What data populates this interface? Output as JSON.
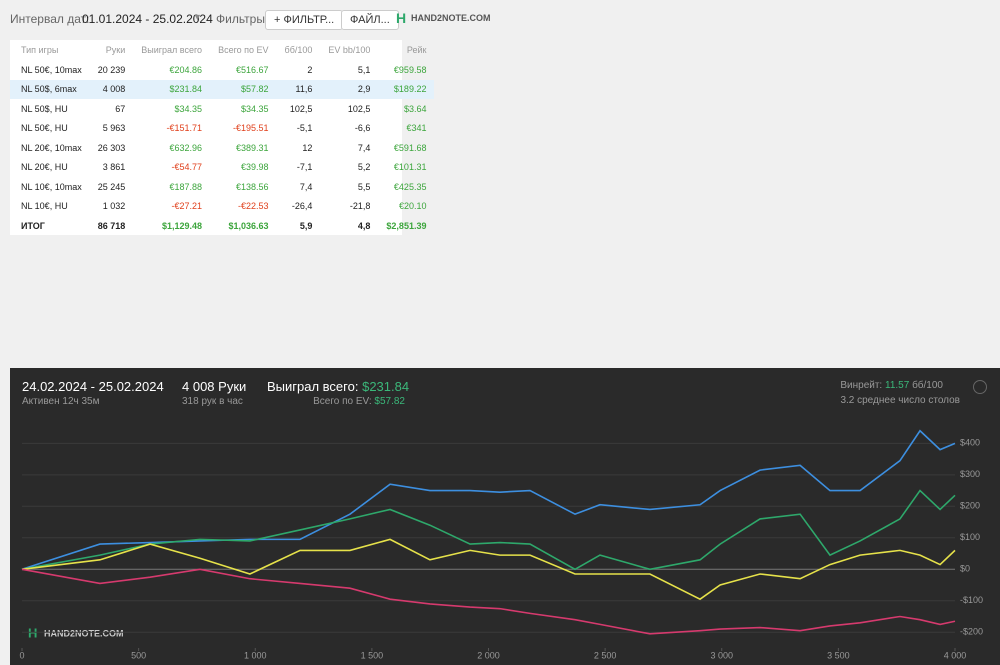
{
  "toolbar": {
    "date_label": "Интервал дат:",
    "date_range": "01.01.2024 - 25.02.2024",
    "filters_label": "Фильтры:",
    "filter_button": "ФИЛЬТР...",
    "file_button": "ФАЙЛ...",
    "logo": "HAND2NOTE.COM"
  },
  "table": {
    "columns": [
      "Тип игры",
      "Руки",
      "Выиграл всего",
      "Всего по EV",
      "бб/100",
      "EV bb/100",
      "Рейк"
    ],
    "rows": [
      [
        "NL 50€, 10max",
        "20 239",
        "€204.86",
        "€516.67",
        "2",
        "5,1",
        "€959.58"
      ],
      [
        "NL 50$, 6max",
        "4 008",
        "$231.84",
        "$57.82",
        "11,6",
        "2,9",
        "$189.22"
      ],
      [
        "NL 50$, HU",
        "67",
        "$34.35",
        "$34.35",
        "102,5",
        "102,5",
        "$3.64"
      ],
      [
        "NL 50€, HU",
        "5 963",
        "-€151.71",
        "-€195.51",
        "-5,1",
        "-6,6",
        "€341"
      ],
      [
        "NL 20€, 10max",
        "26 303",
        "€632.96",
        "€389.31",
        "12",
        "7,4",
        "€591.68"
      ],
      [
        "NL 20€, HU",
        "3 861",
        "-€54.77",
        "€39.98",
        "-7,1",
        "5,2",
        "€101.31"
      ],
      [
        "NL 10€, 10max",
        "25 245",
        "€187.88",
        "€138.56",
        "7,4",
        "5,5",
        "€425.35"
      ],
      [
        "NL 10€, HU",
        "1 032",
        "-€27.21",
        "-€22.53",
        "-26,4",
        "-21,8",
        "€20.10"
      ]
    ],
    "total": [
      "ИТОГ",
      "86 718",
      "$1,129.48",
      "$1,036.63",
      "5,9",
      "4,8",
      "$2,851.39"
    ]
  },
  "session": {
    "date_range": "24.02.2024 - 25.02.2024",
    "active": "Активен 12ч 35м",
    "hands": "4 008 Руки",
    "hands_per_hour": "318 рук в час",
    "won_label": "Выиграл всего:",
    "won": "$231.84",
    "ev_label": "Всего по EV:",
    "ev": "$57.82",
    "winrate_label": "Винрейт:",
    "winrate": "11.57",
    "winrate_unit": "бб/100",
    "tables": "3.2 среднее число столов"
  },
  "graph": {
    "type": "line",
    "x": [
      0,
      334,
      549,
      763,
      977,
      1192,
      1406,
      1578,
      1749,
      1921,
      2049,
      2178,
      2371,
      2478,
      2692,
      2907,
      2993,
      3164,
      3336,
      3464,
      3593,
      3764,
      3850,
      3936,
      4000
    ],
    "xlim": [
      0,
      4000
    ],
    "xticks": [
      0,
      500,
      {
        "value": 1000,
        "label": "1 000"
      },
      {
        "value": 1500,
        "label": "1 500"
      },
      {
        "value": 2000,
        "label": "2 000"
      },
      {
        "value": 2500,
        "label": "2 500"
      },
      {
        "value": 3000,
        "label": "3 000"
      },
      {
        "value": 3500,
        "label": "3 500"
      },
      {
        "value": 4000,
        "label": "4 000"
      }
    ],
    "ylim": [
      -250,
      490
    ],
    "yticks": [
      {
        "value": 400,
        "label": "$400"
      },
      {
        "value": 300,
        "label": "$300"
      },
      {
        "value": 200,
        "label": "$200"
      },
      {
        "value": 100,
        "label": "$100"
      },
      {
        "value": 0,
        "label": "$0"
      },
      {
        "value": -100,
        "label": "-$100"
      },
      {
        "value": -200,
        "label": "-$200"
      }
    ],
    "series": [
      {
        "color": "#3d8fe0",
        "values": [
          0,
          80,
          85,
          90,
          95,
          95,
          175,
          270,
          250,
          250,
          245,
          250,
          175,
          205,
          190,
          205,
          250,
          315,
          330,
          250,
          250,
          345,
          440,
          380,
          400
        ]
      },
      {
        "color": "#2ea86b",
        "values": [
          0,
          45,
          80,
          95,
          90,
          125,
          160,
          190,
          140,
          80,
          85,
          80,
          0,
          45,
          0,
          30,
          80,
          160,
          175,
          45,
          90,
          160,
          250,
          190,
          235
        ]
      },
      {
        "color": "#e6e24a",
        "values": [
          0,
          30,
          80,
          35,
          -15,
          60,
          60,
          95,
          30,
          60,
          45,
          45,
          -15,
          -15,
          -15,
          -95,
          -50,
          -15,
          -30,
          15,
          45,
          60,
          45,
          15,
          60
        ]
      },
      {
        "color": "#d63a6e",
        "values": [
          0,
          -45,
          -25,
          0,
          -30,
          -45,
          -60,
          -95,
          -110,
          -120,
          -125,
          -140,
          -160,
          -175,
          -205,
          -195,
          -190,
          -185,
          -195,
          -180,
          -170,
          -150,
          -160,
          -175,
          -165
        ]
      }
    ],
    "watermark": "HAND2NOTE.COM"
  }
}
